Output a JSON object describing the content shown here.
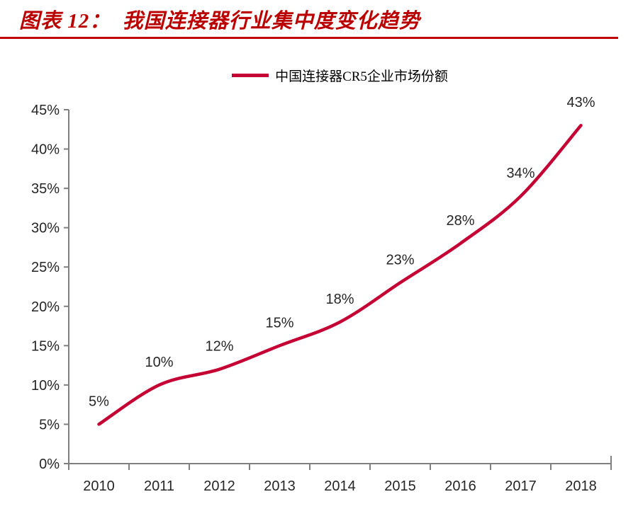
{
  "header": {
    "title": "图表 12：  我国连接器行业集中度变化趋势",
    "title_color": "#BB0000",
    "rule_color": "#C00000"
  },
  "chart_data": {
    "type": "line",
    "title": "图表 12：我国连接器行业集中度变化趋势",
    "legend": "中国连接器CR5企业市场份额",
    "legend_position": "top-center",
    "categories": [
      "2010",
      "2011",
      "2012",
      "2013",
      "2014",
      "2015",
      "2016",
      "2017",
      "2018"
    ],
    "series": [
      {
        "name": "中国连接器CR5企业市场份额",
        "values": [
          5,
          10,
          12,
          15,
          18,
          23,
          28,
          34,
          43
        ]
      }
    ],
    "data_labels": [
      "5%",
      "10%",
      "12%",
      "15%",
      "18%",
      "23%",
      "28%",
      "34%",
      "43%"
    ],
    "y_tick_labels": [
      "0%",
      "5%",
      "10%",
      "15%",
      "20%",
      "25%",
      "30%",
      "35%",
      "40%",
      "45%"
    ],
    "ylim": [
      0,
      45
    ],
    "y_tick_step": 5,
    "grid": false,
    "smooth": true,
    "line_color": "#C40233",
    "axis_color": "#808080",
    "tick_label_color": "#262626",
    "data_label_color": "#262626"
  }
}
